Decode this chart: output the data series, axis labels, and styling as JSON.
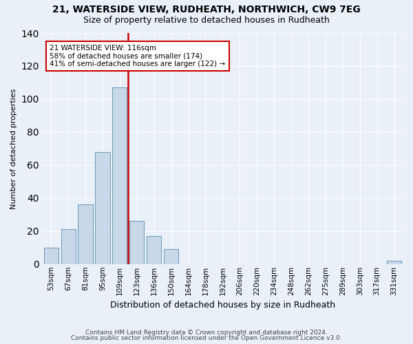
{
  "title1": "21, WATERSIDE VIEW, RUDHEATH, NORTHWICH, CW9 7EG",
  "title2": "Size of property relative to detached houses in Rudheath",
  "xlabel": "Distribution of detached houses by size in Rudheath",
  "ylabel": "Number of detached properties",
  "footnote1": "Contains HM Land Registry data © Crown copyright and database right 2024.",
  "footnote2": "Contains public sector information licensed under the Open Government Licence v3.0.",
  "bin_labels": [
    "53sqm",
    "67sqm",
    "81sqm",
    "95sqm",
    "109sqm",
    "123sqm",
    "136sqm",
    "150sqm",
    "164sqm",
    "178sqm",
    "192sqm",
    "206sqm",
    "220sqm",
    "234sqm",
    "248sqm",
    "262sqm",
    "275sqm",
    "289sqm",
    "303sqm",
    "317sqm",
    "331sqm"
  ],
  "bin_values": [
    10,
    21,
    36,
    68,
    107,
    26,
    17,
    9,
    0,
    0,
    0,
    0,
    0,
    0,
    0,
    0,
    0,
    0,
    0,
    0,
    2
  ],
  "bar_color": "#c8d8e8",
  "bar_edgecolor": "#6699bb",
  "annotation_text1": "21 WATERSIDE VIEW: 116sqm",
  "annotation_text2": "58% of detached houses are smaller (174)",
  "annotation_text3": "41% of semi-detached houses are larger (122) →",
  "annotation_box_color": "#ffffff",
  "annotation_box_edgecolor": "#cc0000",
  "vline_color": "#cc0000",
  "vline_index": 4.5,
  "ylim": [
    0,
    140
  ],
  "background_color": "#eaf0f8",
  "grid_color": "#ffffff"
}
